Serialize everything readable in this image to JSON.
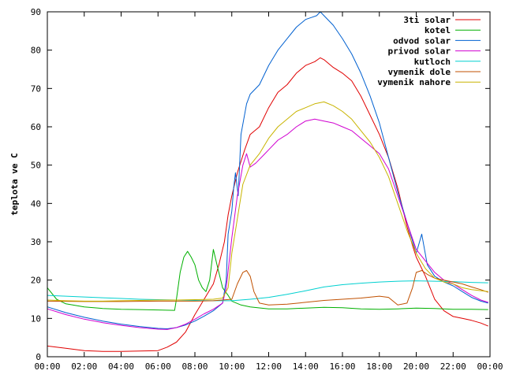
{
  "chart_data": {
    "type": "line",
    "title": "",
    "xlabel": "",
    "ylabel": "teplota ve C",
    "xlim": [
      0,
      24
    ],
    "ylim": [
      0,
      90
    ],
    "grid": false,
    "legend_position": "top-right",
    "x_ticks": [
      {
        "value": 0,
        "label": "00:00"
      },
      {
        "value": 2,
        "label": "02:00"
      },
      {
        "value": 4,
        "label": "04:00"
      },
      {
        "value": 6,
        "label": "06:00"
      },
      {
        "value": 8,
        "label": "08:00"
      },
      {
        "value": 10,
        "label": "10:00"
      },
      {
        "value": 12,
        "label": "12:00"
      },
      {
        "value": 14,
        "label": "14:00"
      },
      {
        "value": 16,
        "label": "16:00"
      },
      {
        "value": 18,
        "label": "18:00"
      },
      {
        "value": 20,
        "label": "20:00"
      },
      {
        "value": 22,
        "label": "22:00"
      },
      {
        "value": 24,
        "label": "00:00"
      }
    ],
    "y_ticks": [
      0,
      10,
      20,
      30,
      40,
      50,
      60,
      70,
      80,
      90
    ],
    "series": [
      {
        "name": "3ti solar",
        "color": "#e00000",
        "points": [
          [
            0,
            2.8
          ],
          [
            1,
            2.2
          ],
          [
            2,
            1.6
          ],
          [
            3,
            1.4
          ],
          [
            4,
            1.4
          ],
          [
            5,
            1.5
          ],
          [
            6,
            1.6
          ],
          [
            6.5,
            2.5
          ],
          [
            7,
            3.8
          ],
          [
            7.5,
            6.5
          ],
          [
            8,
            11
          ],
          [
            8.5,
            15
          ],
          [
            9,
            19
          ],
          [
            9.3,
            24
          ],
          [
            9.6,
            30
          ],
          [
            9.8,
            37
          ],
          [
            10,
            42
          ],
          [
            10.3,
            48
          ],
          [
            10.7,
            54
          ],
          [
            11,
            58
          ],
          [
            11.5,
            60
          ],
          [
            12,
            65
          ],
          [
            12.5,
            69
          ],
          [
            13,
            71
          ],
          [
            13.5,
            74
          ],
          [
            14,
            76
          ],
          [
            14.5,
            77
          ],
          [
            14.8,
            78
          ],
          [
            15,
            77.5
          ],
          [
            15.5,
            75.5
          ],
          [
            16,
            74
          ],
          [
            16.5,
            72
          ],
          [
            17,
            68
          ],
          [
            17.5,
            63
          ],
          [
            18,
            58
          ],
          [
            18.5,
            52
          ],
          [
            19,
            44
          ],
          [
            19.5,
            34
          ],
          [
            19.8,
            29
          ],
          [
            20,
            26
          ],
          [
            20.5,
            21
          ],
          [
            21,
            15
          ],
          [
            21.5,
            12
          ],
          [
            22,
            10.5
          ],
          [
            22.5,
            10
          ],
          [
            23,
            9.5
          ],
          [
            23.5,
            8.8
          ],
          [
            23.9,
            8
          ]
        ]
      },
      {
        "name": "kotel",
        "color": "#00b000",
        "points": [
          [
            0,
            18
          ],
          [
            0.5,
            15
          ],
          [
            1,
            13.8
          ],
          [
            2,
            13
          ],
          [
            3,
            12.6
          ],
          [
            4,
            12.4
          ],
          [
            5,
            12.3
          ],
          [
            6,
            12.2
          ],
          [
            6.9,
            12.1
          ],
          [
            7,
            15
          ],
          [
            7.2,
            22
          ],
          [
            7.4,
            26
          ],
          [
            7.6,
            27.5
          ],
          [
            7.8,
            26
          ],
          [
            8,
            24
          ],
          [
            8.2,
            20
          ],
          [
            8.4,
            18
          ],
          [
            8.6,
            17
          ],
          [
            8.8,
            20
          ],
          [
            9,
            28
          ],
          [
            9.2,
            24
          ],
          [
            9.5,
            18
          ],
          [
            9.8,
            16
          ],
          [
            10,
            14.5
          ],
          [
            10.5,
            13.5
          ],
          [
            11,
            13
          ],
          [
            12,
            12.5
          ],
          [
            13,
            12.5
          ],
          [
            14,
            12.7
          ],
          [
            15,
            12.9
          ],
          [
            16,
            12.8
          ],
          [
            17,
            12.5
          ],
          [
            18,
            12.4
          ],
          [
            19,
            12.5
          ],
          [
            20,
            12.7
          ],
          [
            21,
            12.6
          ],
          [
            22,
            12.4
          ],
          [
            23,
            12.4
          ],
          [
            23.9,
            12.3
          ]
        ]
      },
      {
        "name": "odvod solar",
        "color": "#0060d0",
        "points": [
          [
            0,
            13
          ],
          [
            1,
            11.5
          ],
          [
            2,
            10.3
          ],
          [
            3,
            9.3
          ],
          [
            4,
            8.5
          ],
          [
            5,
            7.9
          ],
          [
            6,
            7.4
          ],
          [
            6.5,
            7.3
          ],
          [
            7,
            7.6
          ],
          [
            7.5,
            8.3
          ],
          [
            8,
            9.3
          ],
          [
            8.5,
            10.6
          ],
          [
            9,
            12
          ],
          [
            9.5,
            14
          ],
          [
            9.7,
            20
          ],
          [
            9.8,
            32
          ],
          [
            10,
            38
          ],
          [
            10.1,
            44
          ],
          [
            10.2,
            48
          ],
          [
            10.35,
            42
          ],
          [
            10.5,
            58
          ],
          [
            10.8,
            66
          ],
          [
            11,
            68.5
          ],
          [
            11.5,
            71
          ],
          [
            12,
            76
          ],
          [
            12.5,
            80
          ],
          [
            13,
            83
          ],
          [
            13.5,
            86
          ],
          [
            14,
            88
          ],
          [
            14.3,
            88.5
          ],
          [
            14.6,
            89
          ],
          [
            14.8,
            90
          ],
          [
            15,
            89
          ],
          [
            15.5,
            86.5
          ],
          [
            16,
            83
          ],
          [
            16.5,
            79
          ],
          [
            17,
            74
          ],
          [
            17.5,
            68
          ],
          [
            18,
            61
          ],
          [
            18.5,
            52
          ],
          [
            19,
            43
          ],
          [
            19.5,
            35
          ],
          [
            20,
            27
          ],
          [
            20.3,
            32
          ],
          [
            20.6,
            24
          ],
          [
            21,
            21
          ],
          [
            21.5,
            19.5
          ],
          [
            22,
            18.5
          ],
          [
            22.5,
            17
          ],
          [
            23,
            15.5
          ],
          [
            23.5,
            14.5
          ],
          [
            23.9,
            14
          ]
        ]
      },
      {
        "name": "privod solar",
        "color": "#d000d0",
        "points": [
          [
            0,
            12.5
          ],
          [
            1,
            11
          ],
          [
            2,
            9.8
          ],
          [
            3,
            8.9
          ],
          [
            4,
            8.2
          ],
          [
            5,
            7.6
          ],
          [
            6,
            7.2
          ],
          [
            6.5,
            7.1
          ],
          [
            7,
            7.6
          ],
          [
            7.5,
            8.5
          ],
          [
            8,
            9.8
          ],
          [
            8.5,
            11.2
          ],
          [
            9,
            12.4
          ],
          [
            9.5,
            14
          ],
          [
            9.7,
            18
          ],
          [
            10,
            31
          ],
          [
            10.3,
            42
          ],
          [
            10.6,
            50
          ],
          [
            10.8,
            53
          ],
          [
            11,
            49.5
          ],
          [
            11.3,
            50.5
          ],
          [
            11.8,
            53
          ],
          [
            12,
            54
          ],
          [
            12.5,
            56.5
          ],
          [
            13,
            58
          ],
          [
            13.5,
            60
          ],
          [
            14,
            61.5
          ],
          [
            14.5,
            62
          ],
          [
            15,
            61.5
          ],
          [
            15.5,
            61
          ],
          [
            16,
            60
          ],
          [
            16.5,
            59
          ],
          [
            17,
            57
          ],
          [
            17.5,
            55
          ],
          [
            18,
            53
          ],
          [
            18.5,
            49
          ],
          [
            19,
            42
          ],
          [
            19.5,
            35
          ],
          [
            20,
            28
          ],
          [
            20.5,
            25
          ],
          [
            21,
            22
          ],
          [
            21.5,
            20
          ],
          [
            22,
            19
          ],
          [
            22.5,
            17.5
          ],
          [
            23,
            16
          ],
          [
            23.5,
            14.8
          ],
          [
            23.9,
            14.2
          ]
        ]
      },
      {
        "name": "kutloch",
        "color": "#00d0d0",
        "points": [
          [
            0,
            16
          ],
          [
            1,
            15.8
          ],
          [
            2,
            15.6
          ],
          [
            3,
            15.4
          ],
          [
            4,
            15.2
          ],
          [
            5,
            15
          ],
          [
            6,
            14.9
          ],
          [
            7,
            14.8
          ],
          [
            8,
            14.7
          ],
          [
            9,
            14.6
          ],
          [
            10,
            14.6
          ],
          [
            11,
            15
          ],
          [
            12,
            15.5
          ],
          [
            13,
            16.3
          ],
          [
            14,
            17.2
          ],
          [
            15,
            18.2
          ],
          [
            16,
            18.8
          ],
          [
            17,
            19.2
          ],
          [
            18,
            19.5
          ],
          [
            19,
            19.7
          ],
          [
            20,
            19.8
          ],
          [
            21,
            19.7
          ],
          [
            22,
            19.6
          ],
          [
            23,
            19.4
          ],
          [
            23.9,
            19.3
          ]
        ]
      },
      {
        "name": "vymenik dole",
        "color": "#c05000",
        "points": [
          [
            0,
            14.5
          ],
          [
            2,
            14.4
          ],
          [
            4,
            14.4
          ],
          [
            6,
            14.5
          ],
          [
            8,
            14.5
          ],
          [
            9,
            14.6
          ],
          [
            10,
            15
          ],
          [
            10.3,
            19
          ],
          [
            10.6,
            22
          ],
          [
            10.8,
            22.5
          ],
          [
            11,
            21
          ],
          [
            11.2,
            17
          ],
          [
            11.5,
            14
          ],
          [
            12,
            13.5
          ],
          [
            13,
            13.7
          ],
          [
            14,
            14.2
          ],
          [
            15,
            14.7
          ],
          [
            16,
            15
          ],
          [
            17,
            15.3
          ],
          [
            18,
            15.8
          ],
          [
            18.5,
            15.5
          ],
          [
            19,
            13.5
          ],
          [
            19.5,
            14
          ],
          [
            19.8,
            18
          ],
          [
            20,
            22
          ],
          [
            20.3,
            22.5
          ],
          [
            20.6,
            21.5
          ],
          [
            21,
            20.5
          ],
          [
            21.5,
            20
          ],
          [
            22,
            19.5
          ],
          [
            22.5,
            19
          ],
          [
            23,
            18.2
          ],
          [
            23.5,
            17.5
          ],
          [
            23.9,
            16.8
          ]
        ]
      },
      {
        "name": "vymenik nahore",
        "color": "#c8b400",
        "points": [
          [
            0,
            14.8
          ],
          [
            1,
            14.6
          ],
          [
            2,
            14.5
          ],
          [
            3,
            14.5
          ],
          [
            4,
            14.6
          ],
          [
            5,
            14.7
          ],
          [
            6,
            14.8
          ],
          [
            7,
            14.8
          ],
          [
            8,
            14.9
          ],
          [
            9,
            15
          ],
          [
            9.5,
            15.3
          ],
          [
            9.8,
            18
          ],
          [
            10,
            27
          ],
          [
            10.3,
            36
          ],
          [
            10.6,
            45
          ],
          [
            11,
            50
          ],
          [
            11.5,
            53
          ],
          [
            12,
            57
          ],
          [
            12.5,
            60
          ],
          [
            13,
            62
          ],
          [
            13.5,
            64
          ],
          [
            14,
            65
          ],
          [
            14.5,
            66
          ],
          [
            15,
            66.5
          ],
          [
            15.5,
            65.5
          ],
          [
            16,
            64
          ],
          [
            16.5,
            62
          ],
          [
            17,
            59
          ],
          [
            17.5,
            56
          ],
          [
            18,
            52
          ],
          [
            18.5,
            47
          ],
          [
            19,
            40
          ],
          [
            19.5,
            33
          ],
          [
            20,
            27
          ],
          [
            20.5,
            23
          ],
          [
            21,
            20.5
          ],
          [
            21.5,
            19.5
          ],
          [
            22,
            19
          ],
          [
            22.5,
            18
          ],
          [
            23,
            17.5
          ],
          [
            23.9,
            17
          ]
        ]
      }
    ]
  }
}
